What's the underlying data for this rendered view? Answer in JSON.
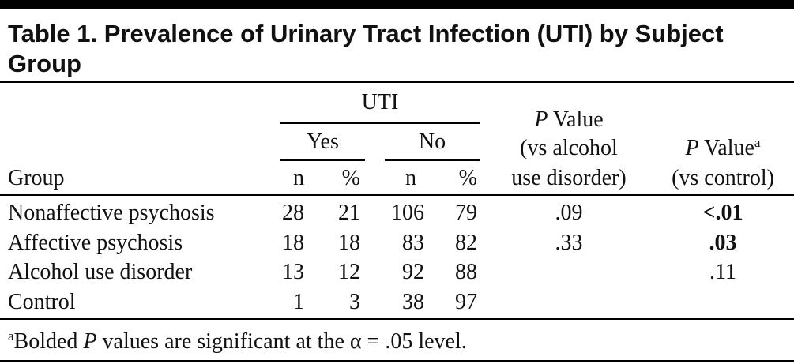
{
  "title": "Table 1. Prevalence of Urinary Tract Infection (UTI) by Subject Group",
  "table": {
    "header": {
      "uti": "UTI",
      "yes": "Yes",
      "no": "No",
      "group": "Group",
      "n1": "n",
      "pct1": "%",
      "n2": "n",
      "pct2": "%",
      "p_alcohol": {
        "italic": "P",
        "rest": " Value",
        "line2": "(vs alcohol",
        "line3": "use disorder)"
      },
      "p_control": {
        "italic": "P",
        "rest": " Value",
        "sup": "a",
        "line2": "(vs control)"
      }
    },
    "rows": [
      {
        "group": "Nonaffective psychosis",
        "yes_n": "28",
        "yes_pct": "21",
        "no_n": "106",
        "no_pct": "79",
        "p_vs_alcohol": ".09",
        "p_vs_control": "<.01"
      },
      {
        "group": "Affective psychosis",
        "yes_n": "18",
        "yes_pct": "18",
        "no_n": "83",
        "no_pct": "82",
        "p_vs_alcohol": ".33",
        "p_vs_control": ".03"
      },
      {
        "group": "Alcohol use disorder",
        "yes_n": "13",
        "yes_pct": "12",
        "no_n": "92",
        "no_pct": "88",
        "p_vs_control": ".11"
      },
      {
        "group": "Control",
        "yes_n": "1",
        "yes_pct": "3",
        "no_n": "38",
        "no_pct": "97"
      }
    ]
  },
  "footnote": {
    "marker": "a",
    "before": "Bolded ",
    "italic": "P",
    "after": " values are significant at the α = .05 level."
  }
}
